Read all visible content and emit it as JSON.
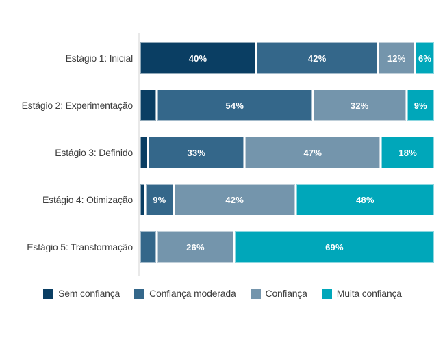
{
  "page": {
    "background": "#ffffff",
    "axis_line_color": "#e9e9e9"
  },
  "chart_data": {
    "type": "bar",
    "variant": "horizontal_stacked",
    "unit": "%",
    "xlim": [
      0,
      100
    ],
    "grid": false,
    "legend_position": "bottom",
    "min_label_value": 6,
    "categories": [
      "Estágio 1: Inicial",
      "Estágio 2: Experimentação",
      "Estágio 3: Definido",
      "Estágio 4: Otimização",
      "Estágio 5: Transformação"
    ],
    "series": [
      {
        "name": "Sem confiança",
        "color": "#0a3e63",
        "values": [
          40,
          5,
          2,
          1,
          0
        ]
      },
      {
        "name": "Confiança moderada",
        "color": "#34678a",
        "values": [
          42,
          54,
          33,
          9,
          5
        ]
      },
      {
        "name": "Confiança",
        "color": "#7495ac",
        "values": [
          12,
          32,
          47,
          42,
          26
        ]
      },
      {
        "name": "Muita confiança",
        "color": "#00a7ba",
        "values": [
          6,
          9,
          18,
          48,
          69
        ]
      }
    ]
  }
}
